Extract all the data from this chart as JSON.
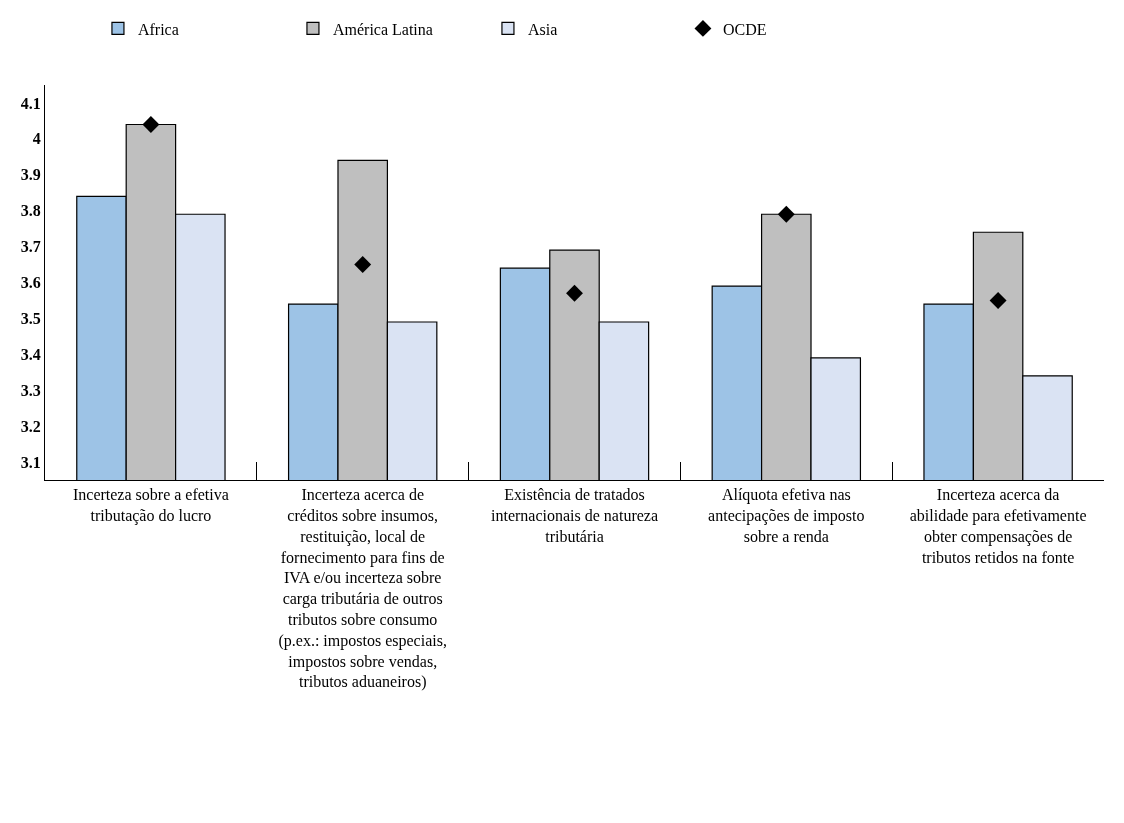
{
  "chart_data": {
    "type": "bar",
    "categories": [
      "Incerteza sobre a efetiva tributação do lucro",
      "Incerteza acerca de créditos sobre insumos, restituição, local de fornecimento para fins de IVA e/ou incerteza sobre carga tributária de outros tributos sobre consumo (p.ex.: impostos especiais, impostos sobre vendas, tributos aduaneiros)",
      "Existência de tratados internacionais de natureza tributária",
      "Alíquota efetiva nas antecipações de imposto sobre a renda",
      "Incerteza acerca da abilidade para efetivamente obter compensações de tributos retidos na fonte"
    ],
    "series": [
      {
        "name": "Africa",
        "color": "#9dc3e6",
        "values": [
          3.84,
          3.54,
          3.64,
          3.59,
          3.54
        ]
      },
      {
        "name": "América Latina",
        "color": "#bfbfbf",
        "values": [
          4.04,
          3.94,
          3.69,
          3.79,
          3.74
        ]
      },
      {
        "name": "Asia",
        "color": "#dae3f3",
        "values": [
          3.79,
          3.49,
          3.49,
          3.39,
          3.34
        ]
      },
      {
        "name": "OCDE",
        "color": "#000000",
        "type": "scatter",
        "marker": "diamond",
        "values": [
          4.04,
          3.65,
          3.57,
          3.79,
          3.55
        ]
      }
    ],
    "ylim": [
      3.05,
      4.15
    ],
    "yticks": [
      3.1,
      3.2,
      3.3,
      3.4,
      3.5,
      3.6,
      3.7,
      3.8,
      3.9,
      4,
      4.1
    ],
    "legend": "top"
  }
}
